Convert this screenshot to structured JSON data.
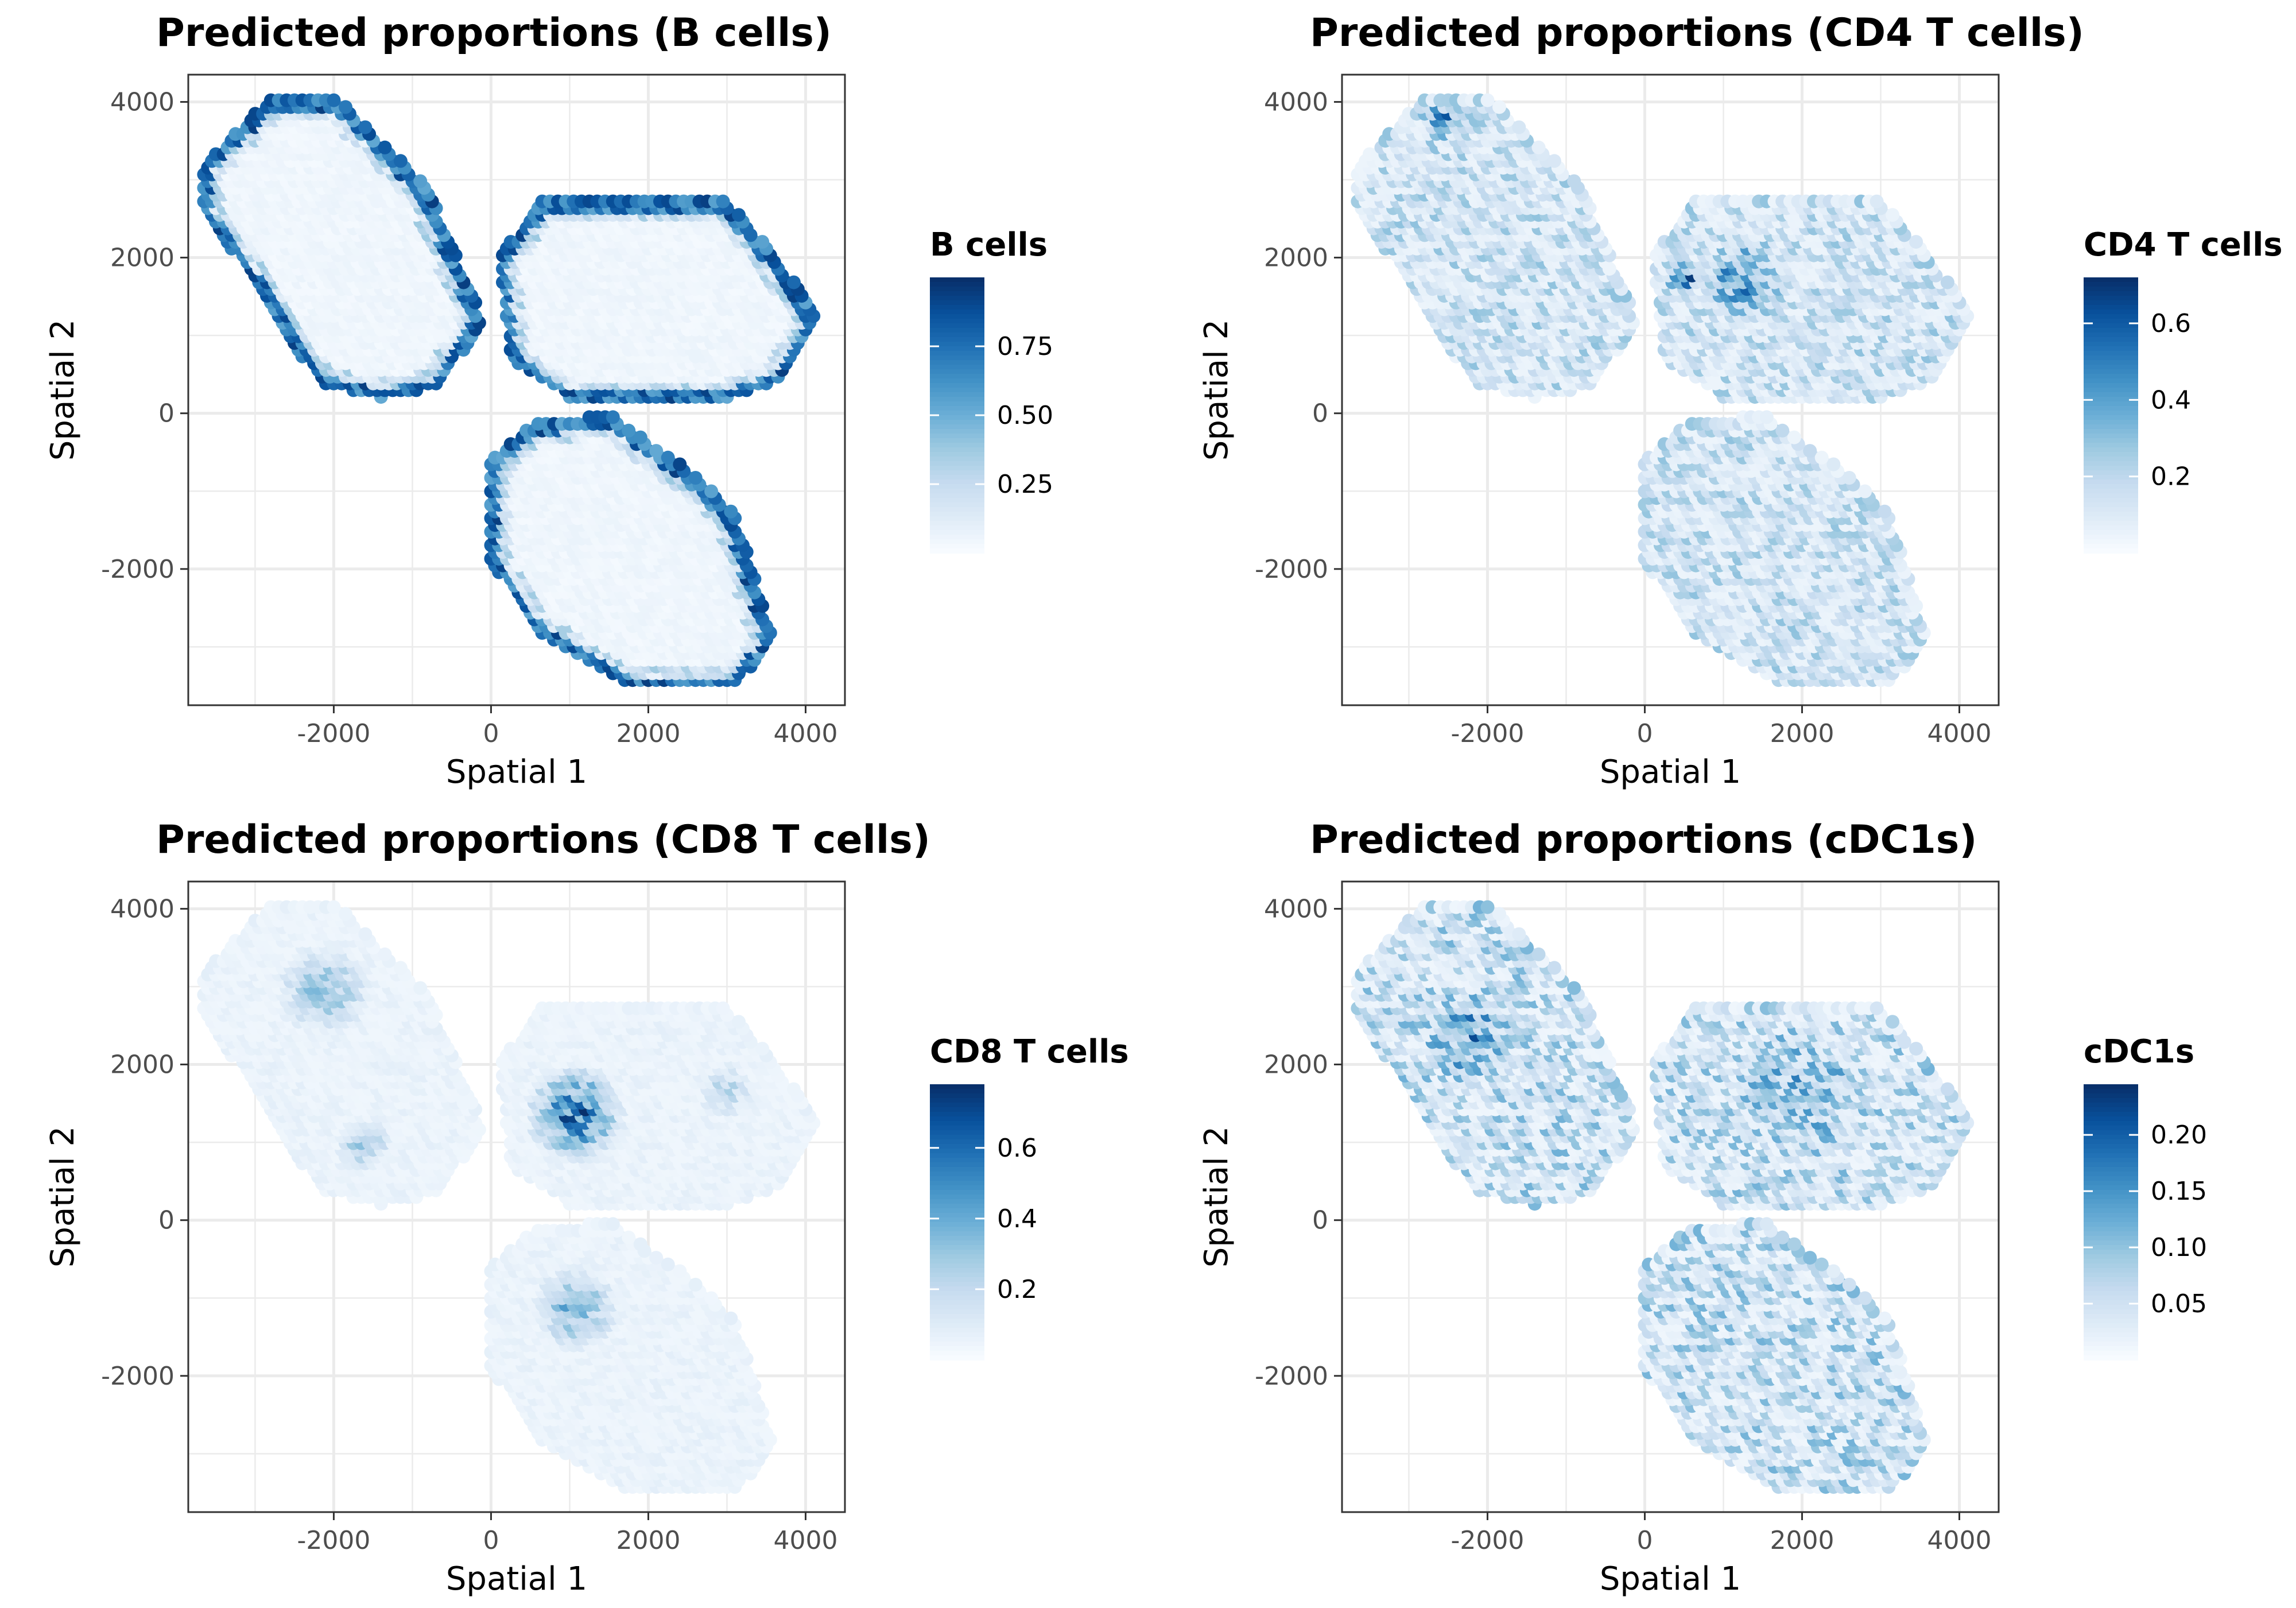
{
  "chart_data": [
    {
      "type": "scatter",
      "title": "Predicted proportions (B cells)",
      "xlabel": "Spatial 1",
      "ylabel": "Spatial 2",
      "xlim": [
        -3850,
        4500
      ],
      "ylim": [
        -3750,
        4350
      ],
      "xticks": [
        -2000,
        0,
        2000,
        4000
      ],
      "yticks": [
        -2000,
        0,
        2000,
        4000
      ],
      "xtick_labels": [
        "-2000",
        "0",
        "2000",
        "4000"
      ],
      "ytick_labels": [
        "-2000",
        "0",
        "2000",
        "4000"
      ],
      "grid": true,
      "legend": {
        "title": "B cells",
        "placement": "right",
        "min": 0.0,
        "max": 1.0,
        "ticks": [
          0.25,
          0.5,
          0.75
        ],
        "tick_labels": [
          "0.25",
          "0.50",
          "0.75"
        ]
      },
      "colorscale": [
        "#f7fbff",
        "#deebf7",
        "#c6dbef",
        "#9ecae1",
        "#6baed6",
        "#4292c6",
        "#2171b5",
        "#08519c",
        "#08306b"
      ],
      "pattern": {
        "kind": "rim",
        "base": 0.05,
        "amp": 0.95,
        "width": 0.13
      },
      "x": "Spatial 1 coordinate of each spot",
      "y": "Spatial 2 coordinate of each spot",
      "value": "predicted B cell proportion per spot"
    },
    {
      "type": "scatter",
      "title": "Predicted proportions (CD4 T cells)",
      "xlabel": "Spatial 1",
      "ylabel": "Spatial 2",
      "xlim": [
        -3850,
        4500
      ],
      "ylim": [
        -3750,
        4350
      ],
      "xticks": [
        -2000,
        0,
        2000,
        4000
      ],
      "yticks": [
        -2000,
        0,
        2000,
        4000
      ],
      "xtick_labels": [
        "-2000",
        "0",
        "2000",
        "4000"
      ],
      "ytick_labels": [
        "-2000",
        "0",
        "2000",
        "4000"
      ],
      "grid": true,
      "legend": {
        "title": "CD4 T cells",
        "placement": "right",
        "min": 0.0,
        "max": 0.72,
        "ticks": [
          0.2,
          0.4,
          0.6
        ],
        "tick_labels": [
          "0.2",
          "0.4",
          "0.6"
        ]
      },
      "colorscale": [
        "#f7fbff",
        "#deebf7",
        "#c6dbef",
        "#9ecae1",
        "#6baed6",
        "#4292c6",
        "#2171b5",
        "#08519c",
        "#08306b"
      ],
      "pattern": {
        "kind": "interior",
        "base": 0.04,
        "amp": 0.26,
        "hot": [
          [
            1300,
            1750,
            600,
            0.3
          ],
          [
            -2500,
            3850,
            350,
            0.25
          ],
          [
            500,
            1800,
            250,
            0.45
          ]
        ]
      },
      "x": "Spatial 1 coordinate of each spot",
      "y": "Spatial 2 coordinate of each spot",
      "value": "predicted CD4 T cell proportion per spot"
    },
    {
      "type": "scatter",
      "title": "Predicted proportions (CD8 T cells)",
      "xlabel": "Spatial 1",
      "ylabel": "Spatial 2",
      "xlim": [
        -3850,
        4500
      ],
      "ylim": [
        -3750,
        4350
      ],
      "xticks": [
        -2000,
        0,
        2000,
        4000
      ],
      "yticks": [
        -2000,
        0,
        2000,
        4000
      ],
      "xtick_labels": [
        "-2000",
        "0",
        "2000",
        "4000"
      ],
      "ytick_labels": [
        "-2000",
        "0",
        "2000",
        "4000"
      ],
      "grid": true,
      "legend": {
        "title": "CD8 T cells",
        "placement": "right",
        "min": 0.0,
        "max": 0.78,
        "ticks": [
          0.2,
          0.4,
          0.6
        ],
        "tick_labels": [
          "0.2",
          "0.4",
          "0.6"
        ]
      },
      "colorscale": [
        "#f7fbff",
        "#deebf7",
        "#c6dbef",
        "#9ecae1",
        "#6baed6",
        "#4292c6",
        "#2171b5",
        "#08519c",
        "#08306b"
      ],
      "pattern": {
        "kind": "hotspots",
        "base": 0.03,
        "amp": 0.05,
        "hot": [
          [
            1100,
            1400,
            650,
            0.6
          ],
          [
            1100,
            -1100,
            550,
            0.35
          ],
          [
            -2100,
            3000,
            600,
            0.3
          ],
          [
            -1600,
            1000,
            350,
            0.25
          ],
          [
            3000,
            1700,
            350,
            0.2
          ]
        ]
      },
      "x": "Spatial 1 coordinate of each spot",
      "y": "Spatial 2 coordinate of each spot",
      "value": "predicted CD8 T cell proportion per spot"
    },
    {
      "type": "scatter",
      "title": "Predicted proportions (cDC1s)",
      "xlabel": "Spatial 1",
      "ylabel": "Spatial 2",
      "xlim": [
        -3850,
        4500
      ],
      "ylim": [
        -3750,
        4350
      ],
      "xticks": [
        -2000,
        0,
        2000,
        4000
      ],
      "yticks": [
        -2000,
        0,
        2000,
        4000
      ],
      "xtick_labels": [
        "-2000",
        "0",
        "2000",
        "4000"
      ],
      "ytick_labels": [
        "-2000",
        "0",
        "2000",
        "4000"
      ],
      "grid": true,
      "legend": {
        "title": "cDC1s",
        "placement": "right",
        "min": 0.0,
        "max": 0.245,
        "ticks": [
          0.05,
          0.1,
          0.15,
          0.2
        ],
        "tick_labels": [
          "0.05",
          "0.10",
          "0.15",
          "0.20"
        ]
      },
      "colorscale": [
        "#f7fbff",
        "#deebf7",
        "#c6dbef",
        "#9ecae1",
        "#6baed6",
        "#4292c6",
        "#2171b5",
        "#08519c",
        "#08306b"
      ],
      "pattern": {
        "kind": "interior",
        "base": 0.01,
        "amp": 0.11,
        "hot": [
          [
            -2200,
            2400,
            650,
            0.08
          ],
          [
            2000,
            1700,
            900,
            0.05
          ]
        ]
      },
      "x": "Spatial 1 coordinate of each spot",
      "y": "Spatial 2 coordinate of each spot",
      "value": "predicted cDC1 proportion per spot"
    }
  ]
}
